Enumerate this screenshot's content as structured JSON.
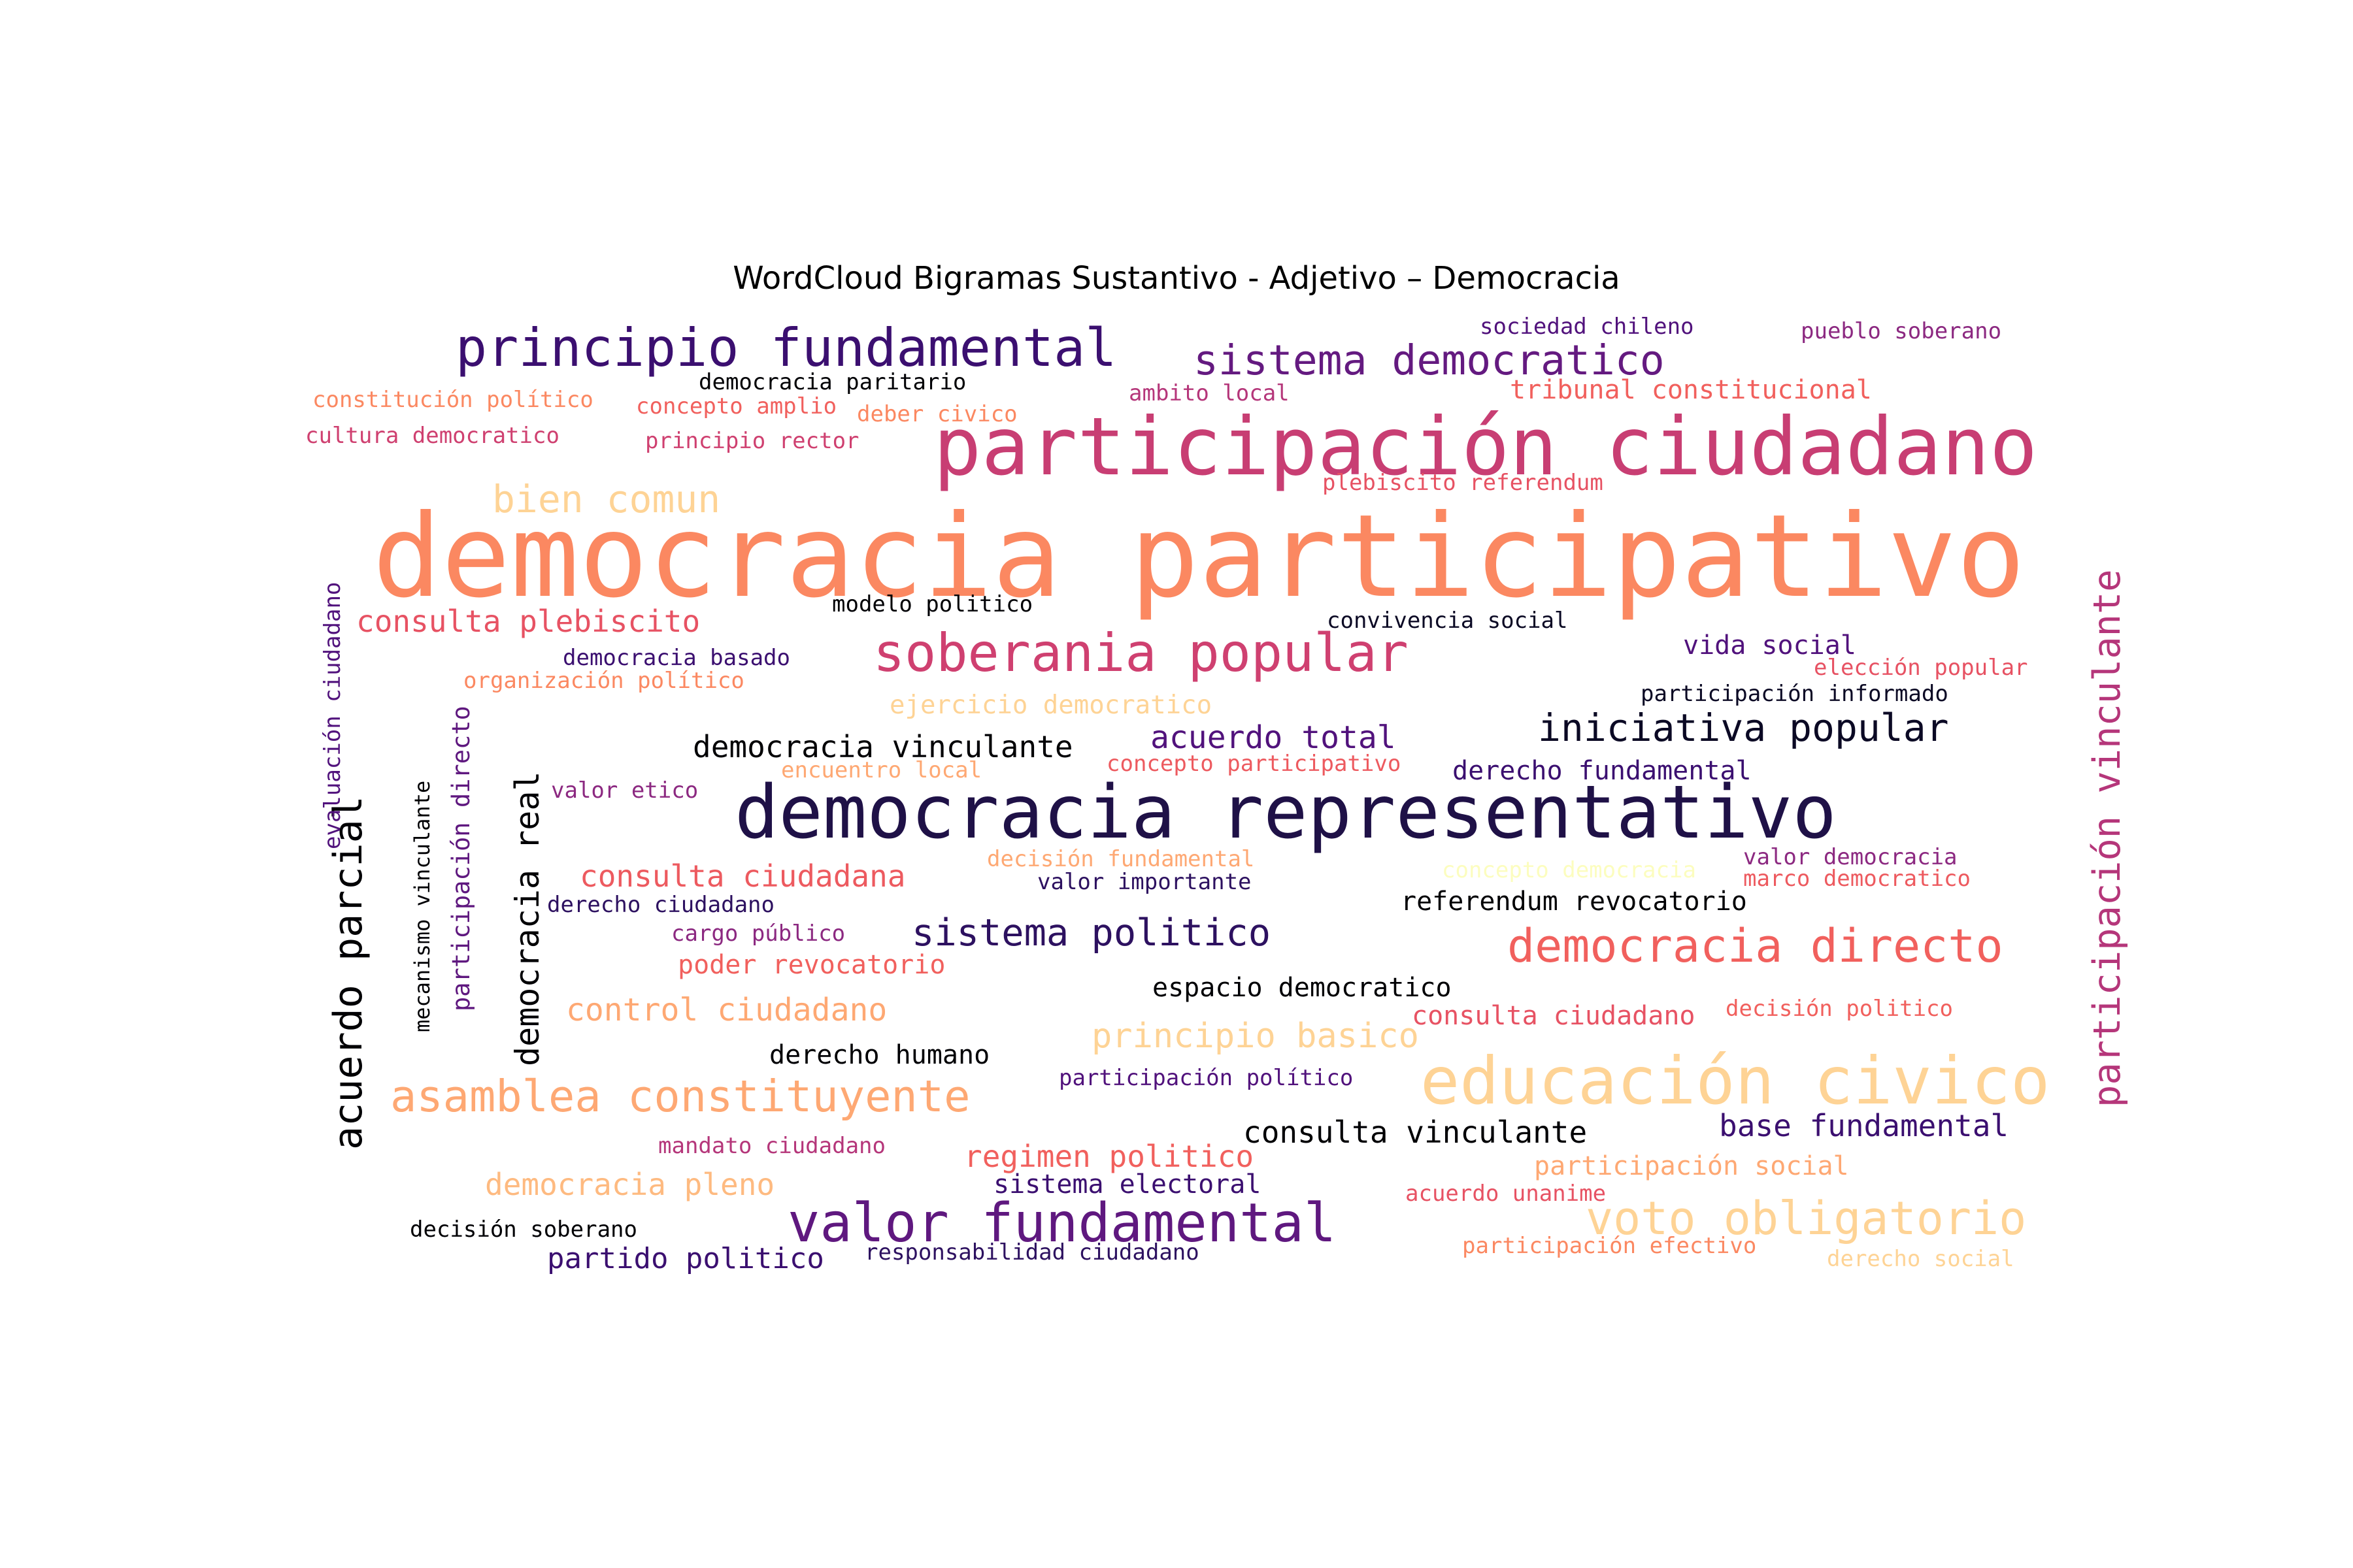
{
  "title": "WordCloud Bigramas Sustantivo - Adjetivo – Democracia",
  "words": [
    {
      "text": "democracia participativo",
      "color": "#fb8861"
    },
    {
      "text": "participación ciudadano",
      "color": "#c83e73"
    },
    {
      "text": "democracia representativo",
      "color": "#1f1147"
    },
    {
      "text": "educación civico",
      "color": "#fed395"
    },
    {
      "text": "principio fundamental",
      "color": "#3b0f70"
    },
    {
      "text": "soberania popular",
      "color": "#cf4070"
    },
    {
      "text": "valor fundamental",
      "color": "#5f187f"
    },
    {
      "text": "participación vinculante",
      "color": "#b5367a"
    },
    {
      "text": "sistema democratico",
      "color": "#641a80"
    },
    {
      "text": "democracia directo",
      "color": "#f1605d"
    },
    {
      "text": "acuerdo parcial",
      "color": "#000004"
    },
    {
      "text": "asamblea constituyente",
      "color": "#fea873"
    },
    {
      "text": "voto obligatorio",
      "color": "#fed395"
    },
    {
      "text": "iniciativa popular",
      "color": "#0b0924"
    },
    {
      "text": "democracia real",
      "color": "#000004"
    },
    {
      "text": "sistema politico",
      "color": "#2d1160"
    },
    {
      "text": "bien comun",
      "color": "#fed395"
    },
    {
      "text": "principio basico",
      "color": "#fed395"
    },
    {
      "text": "acuerdo total",
      "color": "#51127c"
    },
    {
      "text": "consulta plebiscito",
      "color": "#e75263"
    },
    {
      "text": "consulta ciudadana",
      "color": "#ed5a5f"
    },
    {
      "text": "democracia vinculante",
      "color": "#000004"
    },
    {
      "text": "control ciudadano",
      "color": "#fea873"
    },
    {
      "text": "consulta vinculante",
      "color": "#000004"
    },
    {
      "text": "regimen politico",
      "color": "#f1605d"
    },
    {
      "text": "democracia pleno",
      "color": "#feba80"
    },
    {
      "text": "base fundamental",
      "color": "#3b0f70"
    },
    {
      "text": "derecho fundamental",
      "color": "#3b0f70"
    },
    {
      "text": "poder revocatorio",
      "color": "#f1605d"
    },
    {
      "text": "espacio democratico",
      "color": "#000004"
    },
    {
      "text": "partido politico",
      "color": "#3b0f70"
    },
    {
      "text": "consulta ciudadano",
      "color": "#e75263"
    },
    {
      "text": "derecho humano",
      "color": "#000004"
    },
    {
      "text": "participación social",
      "color": "#fea873"
    },
    {
      "text": "sistema electoral",
      "color": "#3b0f70"
    },
    {
      "text": "referendum revocatorio",
      "color": "#000004"
    },
    {
      "text": "vida social",
      "color": "#51127c"
    },
    {
      "text": "tribunal constitucional",
      "color": "#f1605d"
    },
    {
      "text": "ejercicio democratico",
      "color": "#fed395"
    },
    {
      "text": "participación directo",
      "color": "#5f187f"
    },
    {
      "text": "sociedad chileno",
      "color": "#51127c"
    },
    {
      "text": "pueblo soberano",
      "color": "#8c2981"
    },
    {
      "text": "democracia paritario",
      "color": "#000004"
    },
    {
      "text": "constitución político",
      "color": "#fb8861"
    },
    {
      "text": "concepto amplio",
      "color": "#f1605d"
    },
    {
      "text": "deber civico",
      "color": "#fb8861"
    },
    {
      "text": "ambito local",
      "color": "#b5367a"
    },
    {
      "text": "cultura democratico",
      "color": "#cf4070"
    },
    {
      "text": "principio rector",
      "color": "#cf4070"
    },
    {
      "text": "plebiscito referendum",
      "color": "#e75263"
    },
    {
      "text": "modelo politico",
      "color": "#000004"
    },
    {
      "text": "convivencia social",
      "color": "#0b0924"
    },
    {
      "text": "democracia basado",
      "color": "#3b0f70"
    },
    {
      "text": "elección popular",
      "color": "#e75263"
    },
    {
      "text": "organización político",
      "color": "#fb8861"
    },
    {
      "text": "participación informado",
      "color": "#0b0924"
    },
    {
      "text": "evaluación ciudadano",
      "color": "#51127c"
    },
    {
      "text": "mecanismo vinculante",
      "color": "#000004"
    },
    {
      "text": "encuentro local",
      "color": "#fea873"
    },
    {
      "text": "concepto participativo",
      "color": "#ed5a5f"
    },
    {
      "text": "valor etico",
      "color": "#8c2981"
    },
    {
      "text": "decisión fundamental",
      "color": "#fea873"
    },
    {
      "text": "concepto democracia",
      "color": "#fcfdbf"
    },
    {
      "text": "valor democracia",
      "color": "#8c2981"
    },
    {
      "text": "valor importante",
      "color": "#2d1160"
    },
    {
      "text": "marco democratico",
      "color": "#ed5a5f"
    },
    {
      "text": "derecho ciudadano",
      "color": "#2d1160"
    },
    {
      "text": "cargo público",
      "color": "#8c2981"
    },
    {
      "text": "decisión politico",
      "color": "#f1605d"
    },
    {
      "text": "participación político",
      "color": "#51127c"
    },
    {
      "text": "mandato ciudadano",
      "color": "#b5367a"
    },
    {
      "text": "acuerdo unanime",
      "color": "#e75263"
    },
    {
      "text": "decisión soberano",
      "color": "#000004"
    },
    {
      "text": "responsabilidad ciudadano",
      "color": "#2d1160"
    },
    {
      "text": "participación efectivo",
      "color": "#fb8861"
    },
    {
      "text": "derecho social",
      "color": "#fed395"
    }
  ]
}
